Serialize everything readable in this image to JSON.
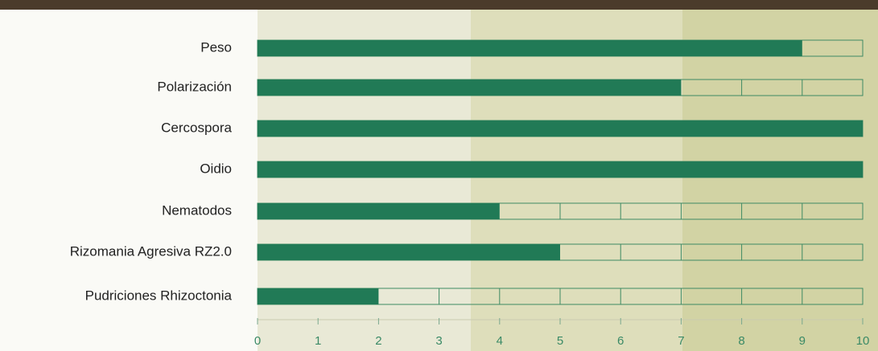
{
  "chart_data": {
    "type": "bar",
    "orientation": "horizontal",
    "categories": [
      "Peso",
      "Polarización",
      "Cercospora",
      "Oidio",
      "Nematodos",
      "Rizomania Agresiva RZ2.0",
      "Pudriciones Rhizoctonia"
    ],
    "values": [
      9,
      7,
      10,
      10,
      4,
      5,
      2
    ],
    "color": "#217a56",
    "xlim": [
      0,
      10
    ],
    "xticks": [
      0,
      1,
      2,
      3,
      4,
      5,
      6,
      7,
      8,
      9,
      10
    ]
  }
}
